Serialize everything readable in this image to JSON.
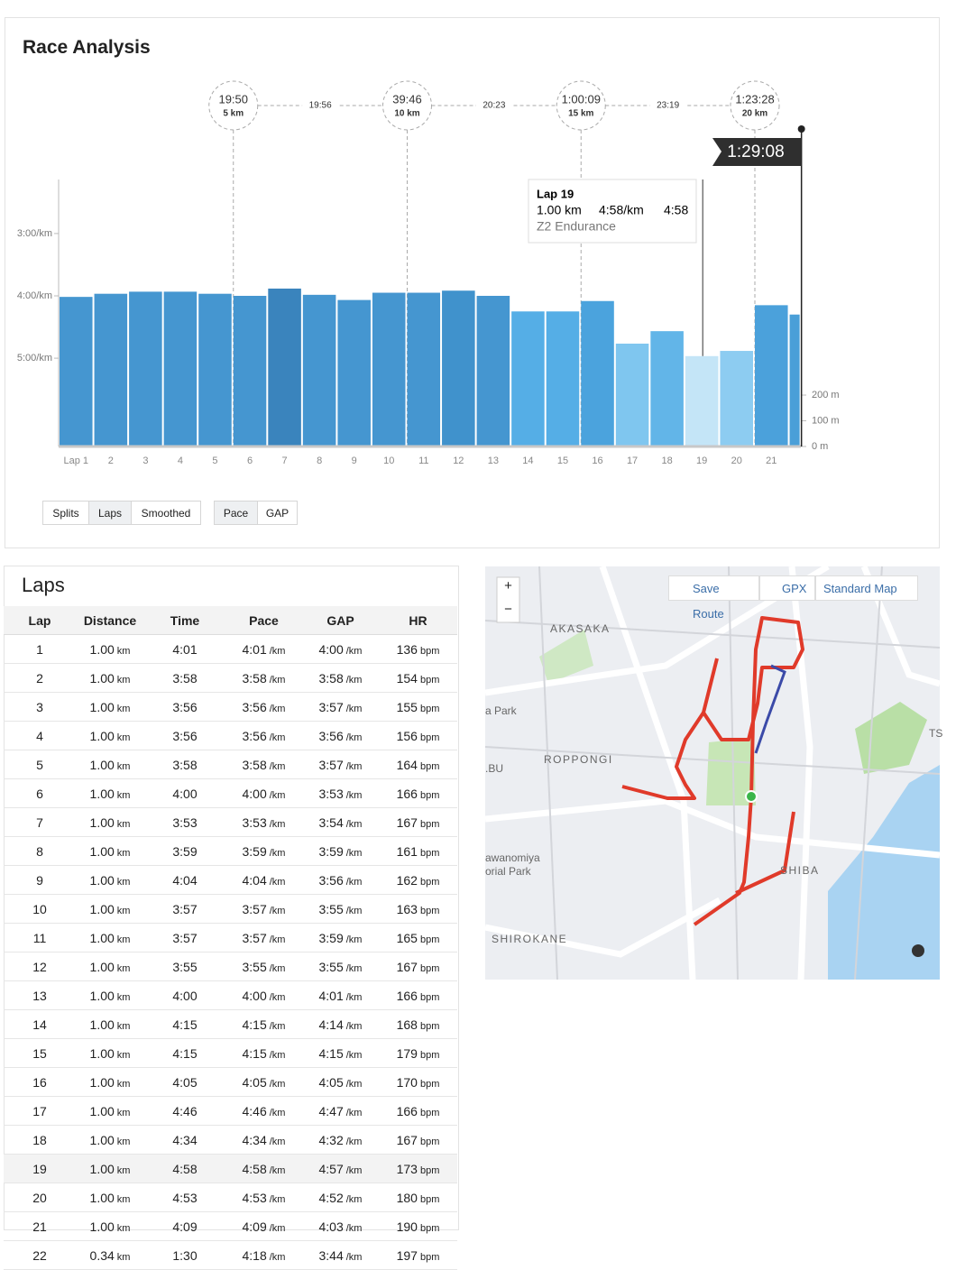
{
  "header": {
    "title": "Race Analysis"
  },
  "chart_data": {
    "type": "bar",
    "categories": [
      "Lap 1",
      "2",
      "3",
      "4",
      "5",
      "6",
      "7",
      "8",
      "9",
      "10",
      "11",
      "12",
      "13",
      "14",
      "15",
      "16",
      "17",
      "18",
      "19",
      "20",
      "21",
      null
    ],
    "values": [
      241,
      238,
      236,
      236,
      238,
      240,
      233,
      239,
      244,
      237,
      237,
      235,
      240,
      255,
      255,
      245,
      286,
      274,
      298,
      293,
      249,
      258
    ],
    "distances": [
      1,
      1,
      1,
      1,
      1,
      1,
      1,
      1,
      1,
      1,
      1,
      1,
      1,
      1,
      1,
      1,
      1,
      1,
      1,
      1,
      1,
      0.34
    ],
    "colors": [
      "#4596d0",
      "#4596d0",
      "#4596d0",
      "#4596d0",
      "#4596d0",
      "#4596d0",
      "#3a84bd",
      "#4596d0",
      "#4596d0",
      "#4596d0",
      "#4596d0",
      "#4092cc",
      "#4596d0",
      "#55aee6",
      "#55aee6",
      "#4ba3dd",
      "#7fc6ef",
      "#62b5e8",
      "#c4e5f7",
      "#8dccf1",
      "#4ba1db",
      "#4a9fd8"
    ],
    "ylim": [
      385,
      128
    ],
    "yticks": [
      {
        "value": 180,
        "label": "3:00/km"
      },
      {
        "value": 240,
        "label": "4:00/km"
      },
      {
        "value": 300,
        "label": "5:00/km"
      }
    ],
    "y2lim": [
      0,
      1039
    ],
    "y2ticks": [
      {
        "value": 200,
        "label": "200 m"
      },
      {
        "value": 100,
        "label": "100 m"
      },
      {
        "value": 0,
        "label": "0 m"
      }
    ],
    "milestones": [
      {
        "time": "19:50",
        "distance": "5 km"
      },
      {
        "time": "39:46",
        "distance": "10 km"
      },
      {
        "time": "1:00:09",
        "distance": "15 km"
      },
      {
        "time": "1:23:28",
        "distance": "20 km"
      }
    ],
    "splits": [
      "19:56",
      "20:23",
      "23:19"
    ],
    "finish": "1:29:08",
    "tooltip": {
      "title": "Lap 19",
      "distance": "1.00 km",
      "pace": "4:58/km",
      "time": "4:58",
      "zone": "Z2 Endurance"
    }
  },
  "controls": {
    "view": [
      "Splits",
      "Laps",
      "Smoothed"
    ],
    "metric": [
      "Pace",
      "GAP"
    ]
  },
  "laps": {
    "title": "Laps",
    "columns": [
      "Lap",
      "Distance",
      "Time",
      "Pace",
      "GAP",
      "HR"
    ],
    "units": [
      "km",
      "/km",
      "/km",
      "bpm"
    ],
    "rows": [
      [
        "1",
        "1.00",
        "4:01",
        "4:01",
        "4:00",
        "136"
      ],
      [
        "2",
        "1.00",
        "3:58",
        "3:58",
        "3:58",
        "154"
      ],
      [
        "3",
        "1.00",
        "3:56",
        "3:56",
        "3:57",
        "155"
      ],
      [
        "4",
        "1.00",
        "3:56",
        "3:56",
        "3:56",
        "156"
      ],
      [
        "5",
        "1.00",
        "3:58",
        "3:58",
        "3:57",
        "164"
      ],
      [
        "6",
        "1.00",
        "4:00",
        "4:00",
        "3:53",
        "166"
      ],
      [
        "7",
        "1.00",
        "3:53",
        "3:53",
        "3:54",
        "167"
      ],
      [
        "8",
        "1.00",
        "3:59",
        "3:59",
        "3:59",
        "161"
      ],
      [
        "9",
        "1.00",
        "4:04",
        "4:04",
        "3:56",
        "162"
      ],
      [
        "10",
        "1.00",
        "3:57",
        "3:57",
        "3:55",
        "163"
      ],
      [
        "11",
        "1.00",
        "3:57",
        "3:57",
        "3:59",
        "165"
      ],
      [
        "12",
        "1.00",
        "3:55",
        "3:55",
        "3:55",
        "167"
      ],
      [
        "13",
        "1.00",
        "4:00",
        "4:00",
        "4:01",
        "166"
      ],
      [
        "14",
        "1.00",
        "4:15",
        "4:15",
        "4:14",
        "168"
      ],
      [
        "15",
        "1.00",
        "4:15",
        "4:15",
        "4:15",
        "179"
      ],
      [
        "16",
        "1.00",
        "4:05",
        "4:05",
        "4:05",
        "170"
      ],
      [
        "17",
        "1.00",
        "4:46",
        "4:46",
        "4:47",
        "166"
      ],
      [
        "18",
        "1.00",
        "4:34",
        "4:34",
        "4:32",
        "167"
      ],
      [
        "19",
        "1.00",
        "4:58",
        "4:58",
        "4:57",
        "173"
      ],
      [
        "20",
        "1.00",
        "4:53",
        "4:53",
        "4:52",
        "180"
      ],
      [
        "21",
        "1.00",
        "4:09",
        "4:09",
        "4:03",
        "190"
      ],
      [
        "22",
        "0.34",
        "1:30",
        "4:18",
        "3:44",
        "197"
      ]
    ]
  },
  "map": {
    "zoom_in": "+",
    "zoom_out": "−",
    "save": "Save Route",
    "gpx": "GPX",
    "style": "Standard Map",
    "labels": [
      "AKASAKA",
      "ROPPONGI",
      "SHIBA",
      "SHIROKANE",
      "a Park",
      ".BU",
      "awanomiya",
      "orial Park",
      "TS"
    ]
  }
}
